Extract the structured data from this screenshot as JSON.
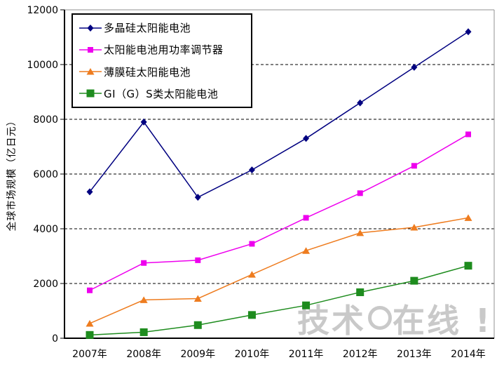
{
  "watermark": {
    "left": "技术",
    "right": "在线",
    "suffix": "!"
  },
  "chart_data": {
    "type": "line",
    "title": "",
    "xlabel": "",
    "ylabel": "全球市场规模（亿日元）",
    "ylim": [
      0,
      12000
    ],
    "ytick_interval": 2000,
    "yticks": [
      0,
      2000,
      4000,
      6000,
      8000,
      10000,
      12000
    ],
    "grid": "horizontal-dashed",
    "legend_position": "top-left-inside",
    "categories": [
      "2007年",
      "2008年",
      "2009年",
      "2010年",
      "2011年",
      "2012年",
      "2013年",
      "2014年"
    ],
    "series": [
      {
        "name": "多晶硅太阳能电池",
        "color": "#000080",
        "marker": "diamond",
        "values": [
          5350,
          7900,
          5150,
          6150,
          7300,
          8600,
          9900,
          11200
        ]
      },
      {
        "name": "太阳能电池用功率调节器",
        "color": "#EE00EE",
        "marker": "square",
        "values": [
          1750,
          2750,
          2850,
          3450,
          4400,
          5300,
          6300,
          7450
        ]
      },
      {
        "name": "薄膜硅太阳能电池",
        "color": "#EE7C1F",
        "marker": "triangle",
        "values": [
          540,
          1400,
          1450,
          2330,
          3200,
          3850,
          4050,
          4400
        ]
      },
      {
        "name": "GI（G）S类太阳能电池",
        "color": "#1E8C1E",
        "marker": "square-large",
        "values": [
          120,
          220,
          480,
          850,
          1200,
          1680,
          2100,
          2650
        ]
      }
    ]
  }
}
